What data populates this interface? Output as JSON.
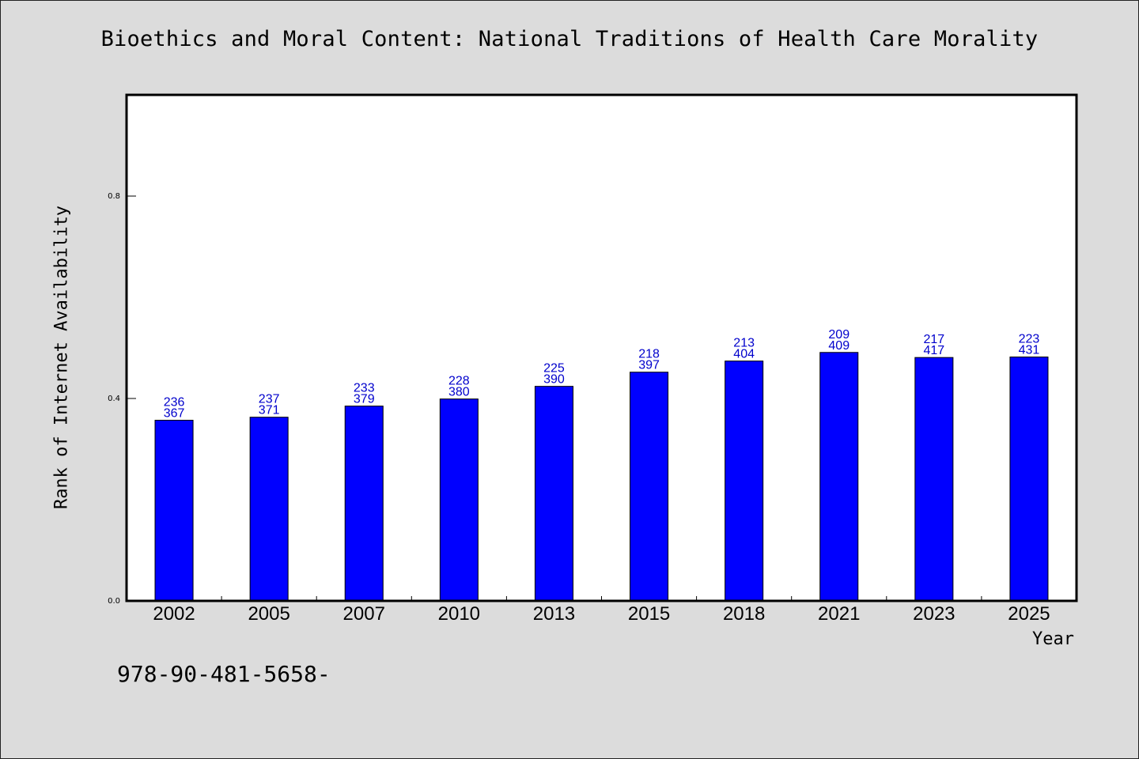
{
  "chart_data": {
    "type": "bar",
    "title": "Bioethics and Moral Content: National Traditions of Health Care Morality",
    "xlabel": "Year",
    "ylabel": "Rank of Internet Availability",
    "categories": [
      "2002",
      "2005",
      "2007",
      "2010",
      "2013",
      "2015",
      "2018",
      "2021",
      "2023",
      "2025"
    ],
    "values": [
      0.357,
      0.363,
      0.385,
      0.399,
      0.424,
      0.452,
      0.474,
      0.491,
      0.481,
      0.482
    ],
    "labels_top": [
      "236",
      "237",
      "233",
      "228",
      "225",
      "218",
      "213",
      "209",
      "217",
      "223"
    ],
    "labels_bottom": [
      "367",
      "371",
      "379",
      "380",
      "390",
      "397",
      "404",
      "409",
      "417",
      "431"
    ],
    "yticks": [
      "0.0",
      "0.4",
      "0.8"
    ],
    "ylim": [
      0,
      1.0
    ],
    "grid": false,
    "bar_color": "#0000ff",
    "label_color": "#0000cc"
  },
  "footer_text": "978-90-481-5658-"
}
